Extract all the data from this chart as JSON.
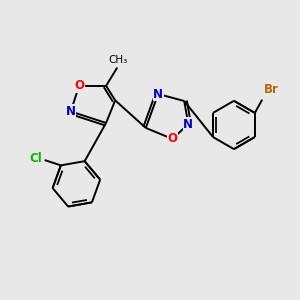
{
  "bg_color": "#e8e8e8",
  "bond_color": "#000000",
  "bond_width": 1.4,
  "atom_colors": {
    "N": "#0000cc",
    "O": "#ff0000",
    "Cl": "#00bb00",
    "Br": "#bb6600",
    "C": "#000000"
  },
  "font_size": 8.5
}
